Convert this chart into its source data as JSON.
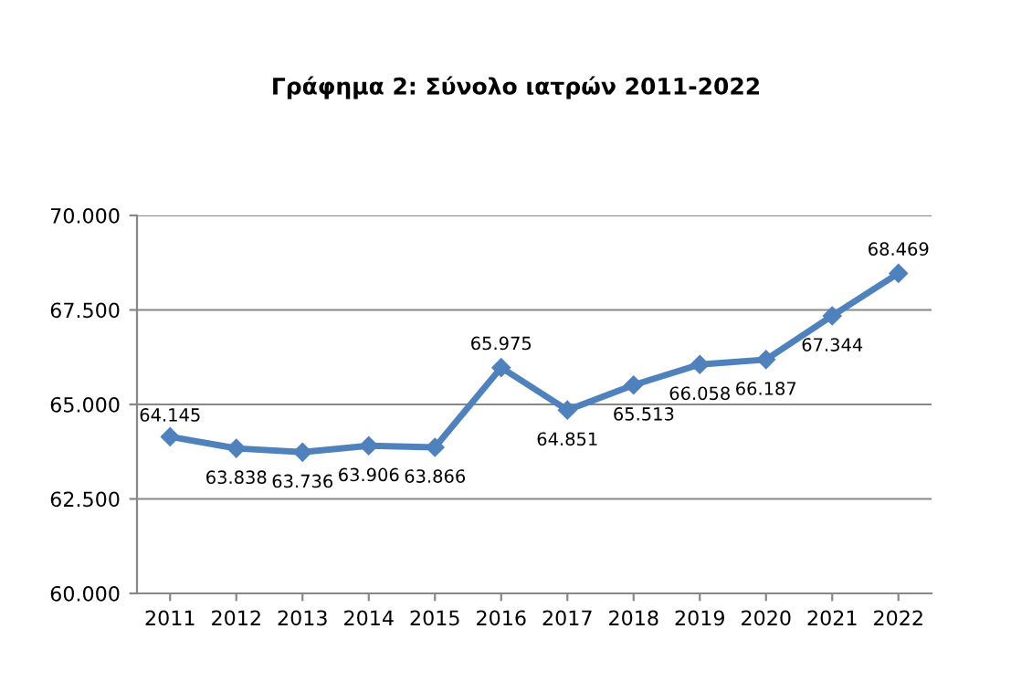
{
  "chart_data": {
    "type": "line",
    "title": "Γράφημα 2: Σύνολο ιατρών 2011-2022",
    "categories": [
      "2011",
      "2012",
      "2013",
      "2014",
      "2015",
      "2016",
      "2017",
      "2018",
      "2019",
      "2020",
      "2021",
      "2022"
    ],
    "values": [
      64145,
      63838,
      63736,
      63906,
      63866,
      65975,
      64851,
      65513,
      66058,
      66187,
      67344,
      68469
    ],
    "value_labels": [
      "64.145",
      "63.838",
      "63.736",
      "63.906",
      "63.866",
      "65.975",
      "64.851",
      "65.513",
      "66.058",
      "66.187",
      "67.344",
      "68.469"
    ],
    "color": "#4f81bd",
    "marker": "diamond",
    "line_style": "solid",
    "grid": "y",
    "ylim": [
      60000,
      70000
    ],
    "yticks": [
      {
        "value": 60000,
        "label": "60.000"
      },
      {
        "value": 62500,
        "label": "62.500"
      },
      {
        "value": 65000,
        "label": "65.000"
      },
      {
        "value": 67500,
        "label": "67.500"
      },
      {
        "value": 70000,
        "label": "70.000"
      }
    ]
  }
}
